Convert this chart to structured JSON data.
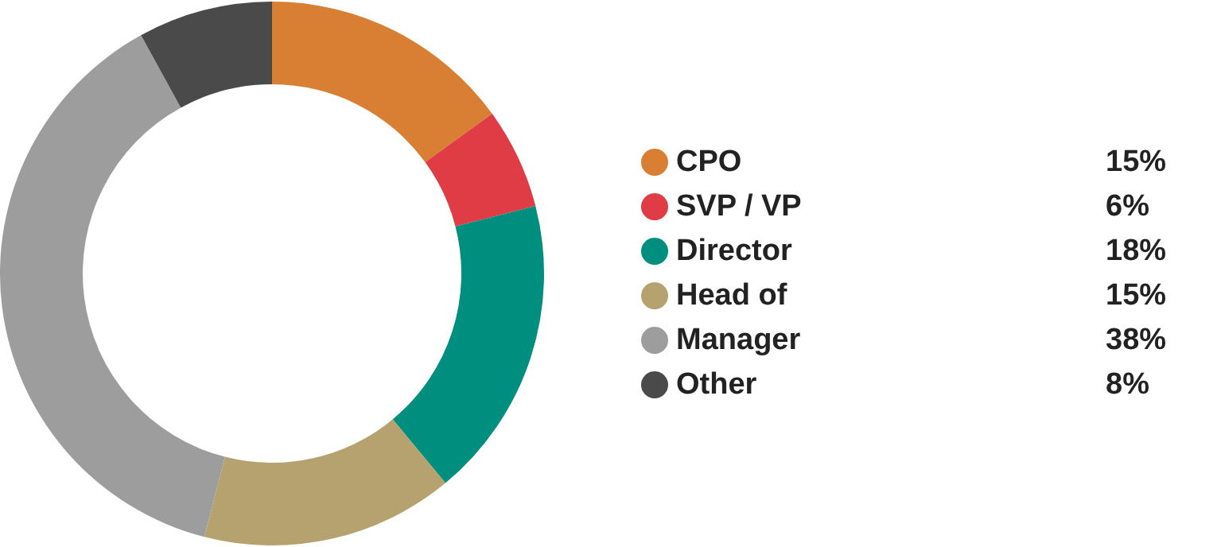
{
  "chart_data": {
    "type": "donut",
    "categories": [
      "CPO",
      "SVP / VP",
      "Director",
      "Head of",
      "Manager",
      "Other"
    ],
    "values": [
      15,
      6,
      18,
      15,
      38,
      8
    ],
    "colors": [
      "#d97f33",
      "#e03c45",
      "#008f7f",
      "#b5a26e",
      "#9d9d9d",
      "#4a4a4a"
    ],
    "value_labels": [
      "15%",
      "6%",
      "18%",
      "15%",
      "38%",
      "8%"
    ],
    "legend": "right"
  }
}
